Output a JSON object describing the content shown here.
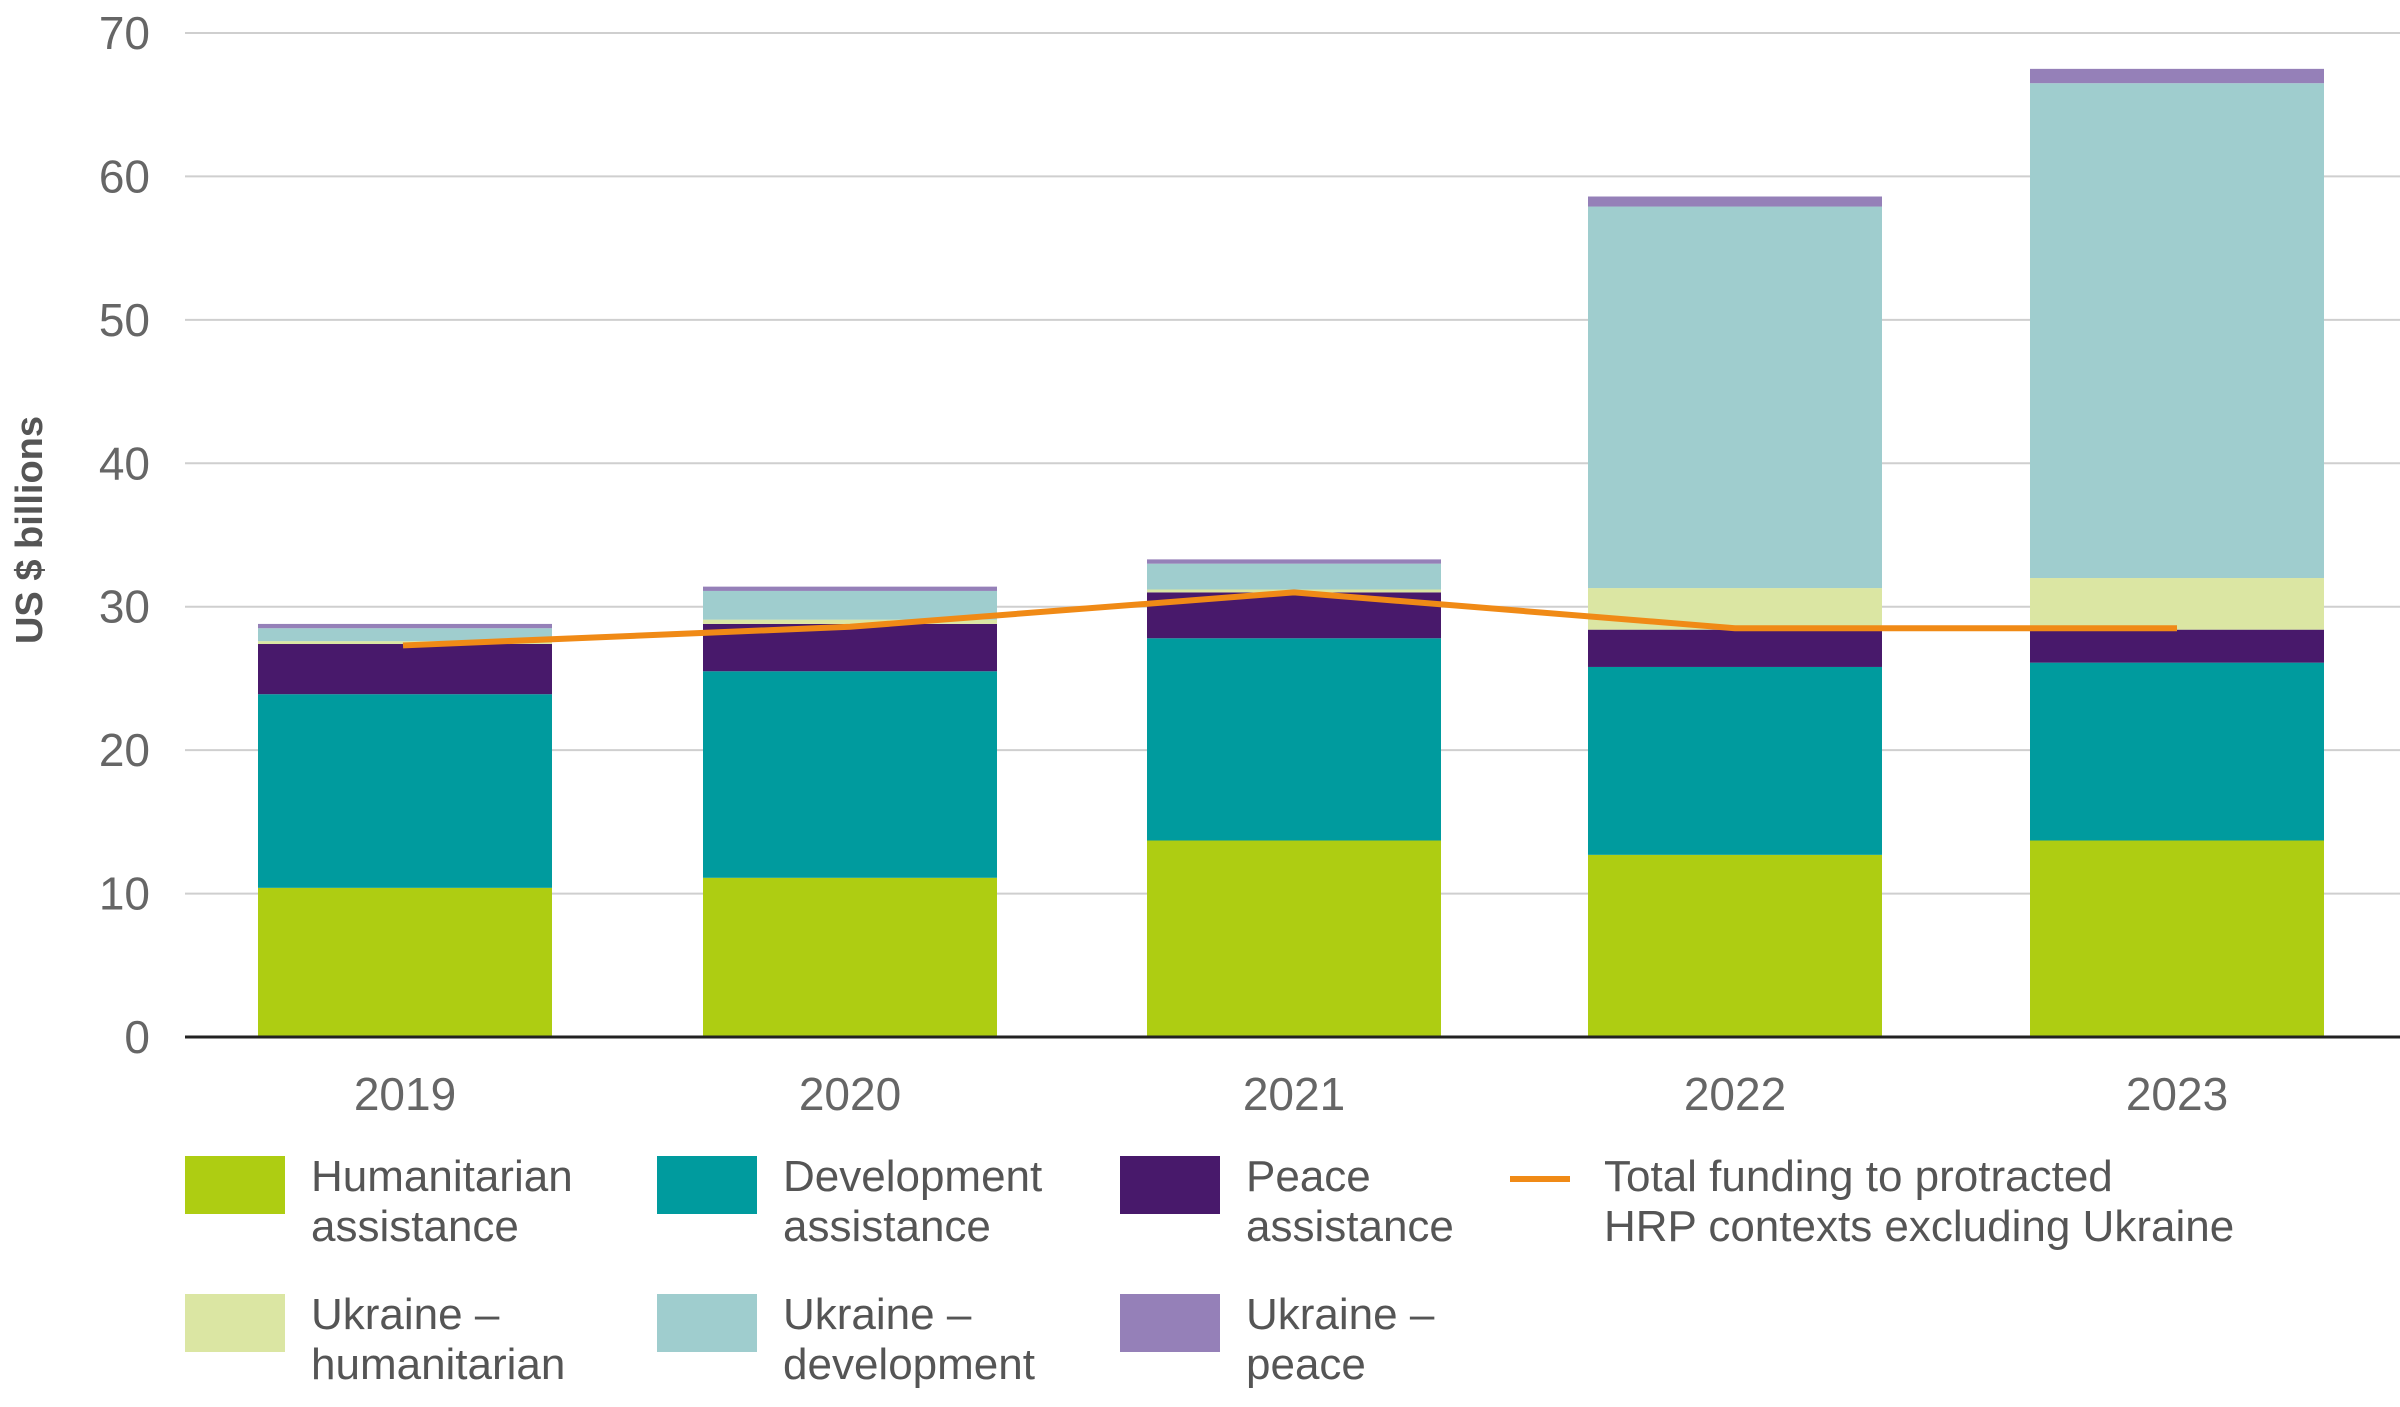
{
  "chart_data": {
    "type": "bar",
    "stacked": true,
    "categories": [
      "2019",
      "2020",
      "2021",
      "2022",
      "2023"
    ],
    "ylabel": "US $ billions",
    "xlabel": "",
    "ylim": [
      0,
      70
    ],
    "yticks": [
      "0",
      "10",
      "20",
      "30",
      "40",
      "50",
      "60",
      "70"
    ],
    "grid": true,
    "legend_position": "bottom",
    "series": [
      {
        "name": "Humanitarian assistance",
        "legend_lines": [
          "Humanitarian",
          "assistance"
        ],
        "color": "#aecd12",
        "values": [
          10.4,
          11.1,
          13.7,
          12.7,
          13.7
        ]
      },
      {
        "name": "Development assistance",
        "legend_lines": [
          "Development",
          "assistance"
        ],
        "color": "#009b9e",
        "values": [
          13.5,
          14.4,
          14.1,
          13.1,
          12.4
        ]
      },
      {
        "name": "Peace assistance",
        "legend_lines": [
          "Peace",
          "assistance"
        ],
        "color": "#48196b",
        "values": [
          3.5,
          3.3,
          3.2,
          2.6,
          2.3
        ]
      },
      {
        "name": "Ukraine – humanitarian",
        "legend_lines": [
          "Ukraine –",
          "humanitarian"
        ],
        "color": "#dbe6a3",
        "values": [
          0.2,
          0.3,
          0.2,
          2.9,
          3.6
        ]
      },
      {
        "name": "Ukraine – development",
        "legend_lines": [
          "Ukraine –",
          "development"
        ],
        "color": "#9fcdce",
        "values": [
          0.9,
          2.0,
          1.8,
          26.6,
          34.5
        ]
      },
      {
        "name": "Ukraine – peace",
        "legend_lines": [
          "Ukraine –",
          "peace"
        ],
        "color": "#9580b8",
        "values": [
          0.3,
          0.3,
          0.3,
          0.7,
          1.0
        ]
      }
    ],
    "line_series": {
      "name": "Total funding to protracted HRP contexts excluding Ukraine",
      "legend_lines": [
        "Total funding to protracted",
        "HRP contexts excluding Ukraine"
      ],
      "color": "#f08a16",
      "values": [
        27.3,
        28.6,
        31.0,
        28.5,
        28.5
      ]
    }
  }
}
